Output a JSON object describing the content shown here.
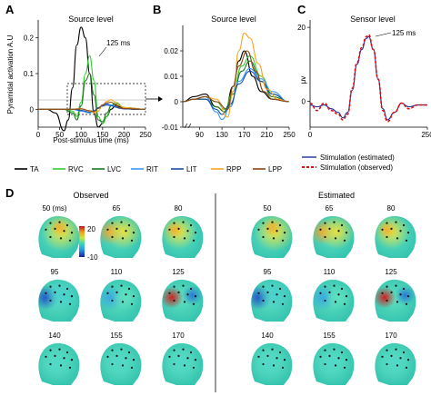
{
  "panels": {
    "A": {
      "letter": "A",
      "title": "Source level",
      "ylabel": "Pyramidal activation A.U",
      "xlabel": "Post-stimulus time (ms)",
      "annotation": "125 ms",
      "yticks": [
        "0.2",
        "0.1",
        "0"
      ],
      "xticks": [
        "0",
        "50",
        "100",
        "150",
        "200",
        "250"
      ]
    },
    "B": {
      "letter": "B",
      "title": "Source level",
      "yticks": [
        "0.02",
        "0.01",
        "0",
        "-0.01"
      ],
      "xticks": [
        "90",
        "130",
        "170",
        "210",
        "250"
      ]
    },
    "C": {
      "letter": "C",
      "title": "Sensor level",
      "ylabel": "μv",
      "annotation": "125 ms",
      "yticks": [
        "20",
        "0"
      ],
      "xticks": [
        "0",
        "250"
      ]
    },
    "D": {
      "letter": "D",
      "observed_label": "Observed",
      "estimated_label": "Estimated",
      "colorbar_max": "20",
      "colorbar_min": "-10",
      "unit_label": "50 (ms)",
      "times": [
        "50",
        "65",
        "80",
        "95",
        "110",
        "125",
        "140",
        "155",
        "170"
      ]
    }
  },
  "legend_main": [
    {
      "label": "TA",
      "color": "#000000"
    },
    {
      "label": "RVC",
      "color": "#33cc33"
    },
    {
      "label": "LVC",
      "color": "#1a7a1a"
    },
    {
      "label": "RIT",
      "color": "#3399ff"
    },
    {
      "label": "LIT",
      "color": "#1a4ea8"
    },
    {
      "label": "RPP",
      "color": "#f5a623"
    },
    {
      "label": "LPP",
      "color": "#8b4513"
    }
  ],
  "legend_c": [
    {
      "label": "Stimulation (estimated)",
      "color": "#1f2e9e",
      "dashed": false
    },
    {
      "label": "Stimulation (observed)",
      "color": "#e01010",
      "dashed": true
    }
  ],
  "chart_data": [
    {
      "type": "line",
      "title": "Source level",
      "xlabel": "Post-stimulus time (ms)",
      "ylabel": "Pyramidal activation A.U",
      "xlim": [
        0,
        250
      ],
      "ylim": [
        -0.05,
        0.25
      ],
      "series": [
        {
          "name": "TA",
          "color": "#000000",
          "x": [
            0,
            20,
            40,
            60,
            70,
            80,
            90,
            100,
            110,
            120,
            130,
            140,
            150,
            160,
            170,
            180,
            200,
            220,
            250
          ],
          "y": [
            0,
            0,
            -0.01,
            -0.06,
            -0.03,
            0.06,
            0.18,
            0.23,
            0.2,
            0.1,
            -0.01,
            -0.05,
            -0.04,
            -0.02,
            0,
            0.01,
            0.005,
            0,
            0
          ]
        },
        {
          "name": "RVC",
          "color": "#33cc33",
          "x": [
            0,
            60,
            80,
            90,
            100,
            110,
            120,
            130,
            140,
            150,
            160,
            170,
            180,
            200,
            250
          ],
          "y": [
            0,
            0,
            -0.005,
            -0.02,
            0.02,
            0.1,
            0.15,
            0.08,
            -0.02,
            -0.04,
            -0.02,
            0.01,
            0.02,
            0.005,
            0
          ]
        },
        {
          "name": "LVC",
          "color": "#1a7a1a",
          "x": [
            0,
            60,
            80,
            90,
            100,
            110,
            120,
            130,
            140,
            150,
            160,
            170,
            180,
            200,
            250
          ],
          "y": [
            0,
            0,
            -0.01,
            -0.03,
            0.01,
            0.08,
            0.1,
            0.04,
            -0.03,
            -0.035,
            -0.01,
            0.01,
            0.015,
            0.005,
            0
          ]
        },
        {
          "name": "RIT",
          "color": "#3399ff",
          "x": [
            0,
            80,
            100,
            120,
            130,
            140,
            150,
            160,
            170,
            180,
            190,
            200,
            250
          ],
          "y": [
            0,
            0,
            -0.005,
            -0.01,
            -0.005,
            0.005,
            0.01,
            0.015,
            0.012,
            0.008,
            0.004,
            0.002,
            0
          ]
        },
        {
          "name": "LIT",
          "color": "#1a4ea8",
          "x": [
            0,
            80,
            100,
            120,
            130,
            140,
            150,
            160,
            170,
            180,
            190,
            200,
            250
          ],
          "y": [
            0,
            0,
            -0.003,
            -0.008,
            -0.004,
            0.004,
            0.009,
            0.012,
            0.01,
            0.006,
            0.003,
            0.001,
            0
          ]
        },
        {
          "name": "RPP",
          "color": "#f5a623",
          "x": [
            0,
            80,
            100,
            120,
            130,
            140,
            150,
            160,
            170,
            180,
            190,
            200,
            250
          ],
          "y": [
            0,
            0,
            0.002,
            -0.005,
            -0.01,
            -0.005,
            0.012,
            0.022,
            0.027,
            0.02,
            0.01,
            0.005,
            0
          ]
        },
        {
          "name": "LPP",
          "color": "#8b4513",
          "x": [
            0,
            80,
            100,
            120,
            130,
            140,
            150,
            160,
            170,
            180,
            190,
            200,
            250
          ],
          "y": [
            0,
            0,
            0.001,
            -0.004,
            -0.006,
            0.002,
            0.012,
            0.018,
            0.02,
            0.012,
            0.005,
            0.002,
            0
          ]
        }
      ]
    },
    {
      "type": "line",
      "title": "Source level",
      "xlim": [
        60,
        250
      ],
      "ylim": [
        -0.01,
        0.03
      ],
      "series": [
        {
          "name": "TA",
          "color": "#000000",
          "x": [
            60,
            80,
            100,
            120,
            135,
            150,
            160,
            170,
            185,
            200,
            220,
            250
          ],
          "y": [
            0,
            0.002,
            0.003,
            -0.002,
            -0.004,
            0.006,
            0.016,
            0.02,
            0.01,
            0.004,
            0.001,
            0
          ]
        },
        {
          "name": "RVC",
          "color": "#33cc33",
          "x": [
            60,
            80,
            100,
            120,
            135,
            150,
            165,
            180,
            200,
            220,
            250
          ],
          "y": [
            0,
            0.001,
            0.002,
            0,
            -0.003,
            0.004,
            0.014,
            0.018,
            0.01,
            0.003,
            0
          ]
        },
        {
          "name": "LVC",
          "color": "#1a7a1a",
          "x": [
            60,
            80,
            100,
            120,
            135,
            150,
            165,
            180,
            200,
            220,
            250
          ],
          "y": [
            0,
            0.001,
            0.001,
            -0.002,
            -0.004,
            0.003,
            0.012,
            0.016,
            0.008,
            0.002,
            0
          ]
        },
        {
          "name": "RIT",
          "color": "#3399ff",
          "x": [
            60,
            80,
            100,
            120,
            130,
            145,
            160,
            180,
            200,
            220,
            250
          ],
          "y": [
            0,
            0.001,
            0.002,
            -0.004,
            -0.007,
            -0.002,
            0.008,
            0.013,
            0.009,
            0.004,
            0
          ]
        },
        {
          "name": "LIT",
          "color": "#1a4ea8",
          "x": [
            60,
            80,
            100,
            120,
            130,
            145,
            160,
            180,
            200,
            220,
            250
          ],
          "y": [
            0,
            0.001,
            0.001,
            -0.003,
            -0.005,
            -0.001,
            0.007,
            0.012,
            0.008,
            0.003,
            0
          ]
        },
        {
          "name": "RPP",
          "color": "#f5a623",
          "x": [
            60,
            80,
            100,
            120,
            140,
            150,
            160,
            170,
            180,
            195,
            210,
            230,
            250
          ],
          "y": [
            0,
            0.001,
            0.002,
            0.001,
            -0.006,
            0.004,
            0.02,
            0.027,
            0.025,
            0.015,
            0.005,
            0.001,
            0
          ]
        },
        {
          "name": "LPP",
          "color": "#8b4513",
          "x": [
            60,
            80,
            100,
            120,
            140,
            150,
            160,
            175,
            190,
            205,
            220,
            250
          ],
          "y": [
            0,
            0.001,
            0.002,
            0,
            -0.003,
            0.006,
            0.014,
            0.02,
            0.012,
            0.004,
            0.001,
            0
          ]
        }
      ]
    },
    {
      "type": "line",
      "title": "Sensor level",
      "ylabel": "μv",
      "xlim": [
        0,
        250
      ],
      "ylim": [
        -7,
        22
      ],
      "series": [
        {
          "name": "Stimulation (estimated)",
          "color": "#1f2e9e",
          "x": [
            0,
            15,
            30,
            45,
            60,
            70,
            80,
            90,
            100,
            110,
            120,
            125,
            135,
            145,
            155,
            165,
            180,
            195,
            210,
            230,
            250
          ],
          "y": [
            -1,
            -1.5,
            -1,
            -2,
            -3,
            -4.5,
            -3,
            3,
            10,
            14,
            17,
            17.5,
            14,
            6,
            -2,
            -5,
            -3,
            -0.5,
            -1.5,
            -1,
            -1
          ]
        },
        {
          "name": "Stimulation (observed)",
          "color": "#e01010",
          "x": [
            0,
            15,
            30,
            45,
            60,
            70,
            80,
            90,
            100,
            110,
            120,
            125,
            135,
            145,
            155,
            165,
            180,
            195,
            210,
            230,
            250
          ],
          "y": [
            -0.5,
            -2.5,
            -0.5,
            -2.5,
            -3.5,
            -5,
            -3.5,
            3.5,
            10.5,
            14.5,
            17.5,
            18,
            14,
            6,
            -2.5,
            -5.5,
            -3,
            -0.5,
            -2,
            -1,
            -1
          ]
        }
      ]
    }
  ]
}
